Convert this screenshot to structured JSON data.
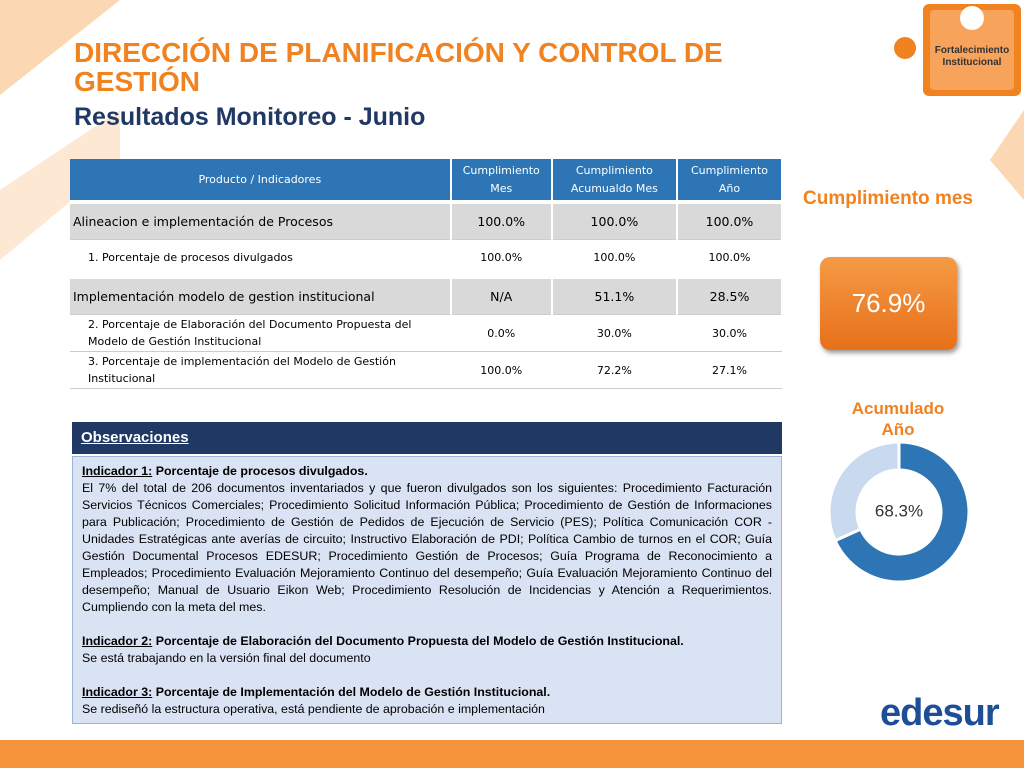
{
  "header": {
    "title": "DIRECCIÓN DE PLANIFICACIÓN Y CONTROL DE GESTIÓN",
    "subtitle": "Resultados Monitoreo - Junio",
    "badge": "Fortalecimiento Institucional"
  },
  "table": {
    "columns": [
      "Producto / Indicadores",
      "Cumplimiento Mes",
      "Cumplimiento Acumualdo Mes",
      "Cumplimiento Año"
    ],
    "rows": [
      [
        "Alineacion e implementación de Procesos",
        "100.0%",
        "100.0%",
        "100.0%"
      ],
      [
        "1. Porcentaje de procesos divulgados",
        "100.0%",
        "100.0%",
        "100.0%"
      ],
      [
        "Implementación modelo de gestion institucional",
        "N/A",
        "51.1%",
        "28.5%"
      ],
      [
        "2. Porcentaje de Elaboración del Documento Propuesta del Modelo de Gestión Institucional",
        "0.0%",
        "30.0%",
        "30.0%"
      ],
      [
        "3. Porcentaje de implementación del Modelo de Gestión Institucional",
        "100.0%",
        "72.2%",
        "27.1%"
      ]
    ]
  },
  "observations": {
    "title": "Observaciones",
    "items": [
      {
        "label": "Indicador 1:",
        "title": "Porcentaje de procesos divulgados.",
        "text": "El 7% del total de 206 documentos inventariados y que fueron divulgados son los siguientes: Procedimiento Facturación Servicios Técnicos Comerciales; Procedimiento Solicitud Información Pública; Procedimiento de Gestión de Informaciones para Publicación; Procedimiento de Gestión de Pedidos de Ejecución de Servicio (PES); Política Comunicación COR - Unidades Estratégicas ante averías de circuito; Instructivo Elaboración de PDI; Política Cambio de turnos en el COR; Guía Gestión Documental Procesos EDESUR; Procedimiento Gestión de Procesos; Guía Programa de Reconocimiento a Empleados; Procedimiento Evaluación Mejoramiento Continuo del desempeño; Guía Evaluación Mejoramiento Continuo del desempeño; Manual de Usuario Eikon Web; Procedimiento Resolución de Incidencias y Atención a Requerimientos.  Cumpliendo con la meta del mes."
      },
      {
        "label": "Indicador 2:",
        "title": "Porcentaje de Elaboración del Documento Propuesta del Modelo de Gestión Institucional.",
        "text": "Se está trabajando en la versión final del documento"
      },
      {
        "label": "Indicador 3:",
        "title": "Porcentaje de Implementación del Modelo de Gestión Institucional.",
        "text": "Se rediseñó la estructura operativa, está pendiente de aprobación e implementación"
      }
    ]
  },
  "month": {
    "title": "Cumplimiento mes",
    "value_label": "76.9%"
  },
  "accumulated": {
    "title": "Acumulado Año",
    "value": 68.3,
    "value_label": "68.3%"
  },
  "logo": "edesur"
}
